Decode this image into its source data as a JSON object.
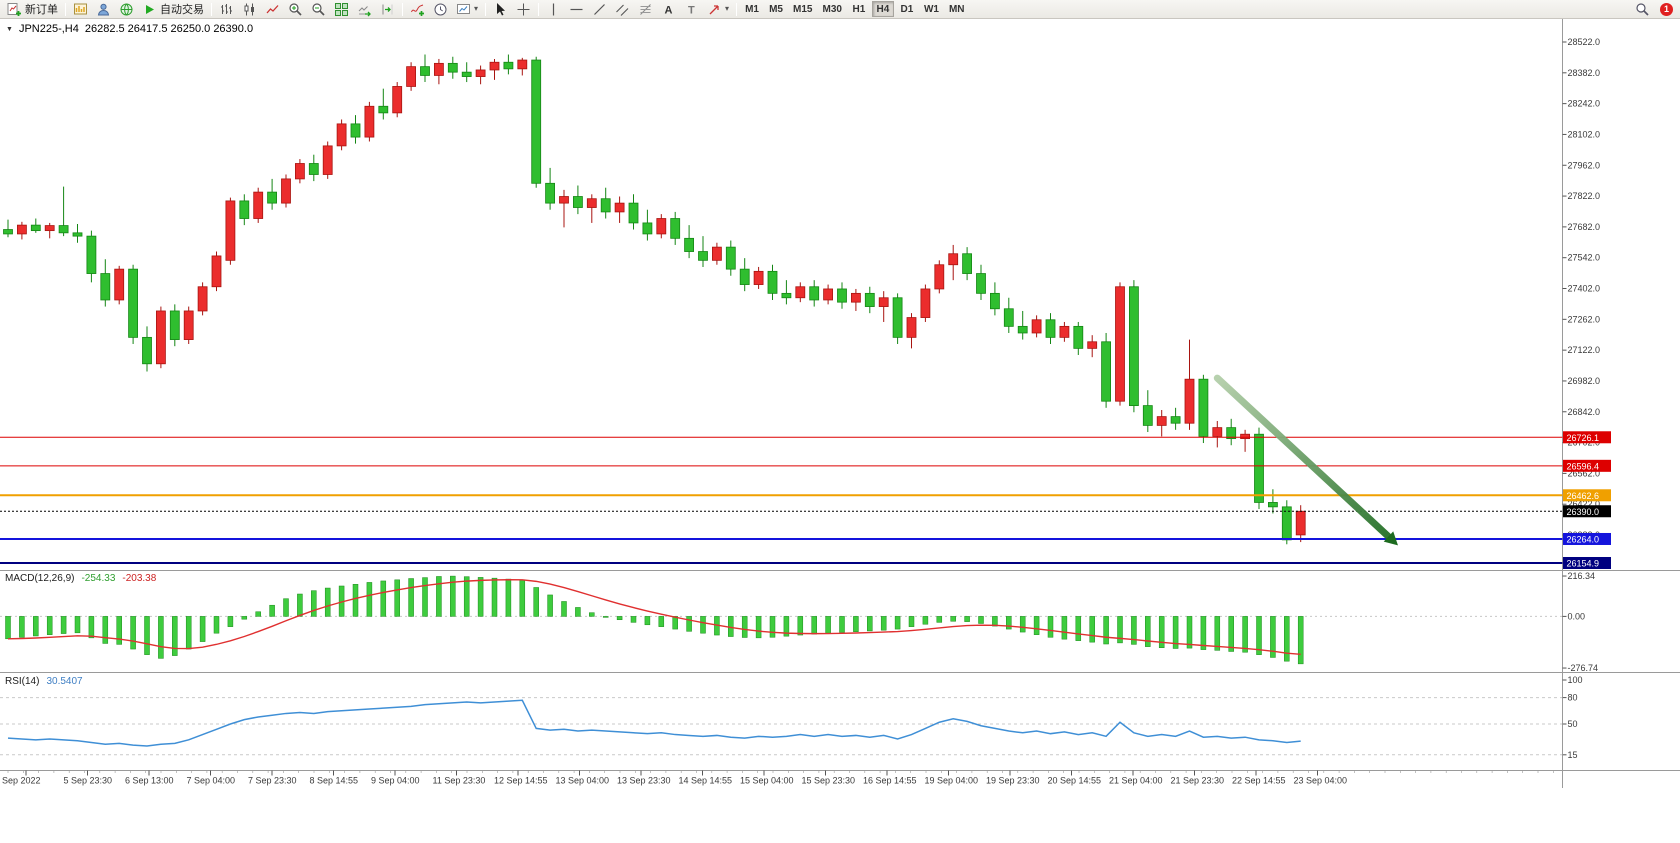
{
  "toolbar": {
    "new_order_label": "新订单",
    "autotrade_label": "自动交易",
    "timeframes": [
      "M1",
      "M5",
      "M15",
      "M30",
      "H1",
      "H4",
      "D1",
      "W1",
      "MN"
    ],
    "active_timeframe": "H4",
    "notification_count": "1"
  },
  "icons": {
    "collapse_triangle": "▼",
    "dropdown_caret": "▾",
    "text_tool": "A",
    "label_tool": "T"
  },
  "chart_header": {
    "symbol_period": "JPN225-,H4",
    "ohlc": "26282.5 26417.5 26250.0 26390.0"
  },
  "macd_panel": {
    "title": "MACD(12,26,9)",
    "value_main": "-254.33",
    "value_signal": "-203.38",
    "axis_labels": [
      "216.34",
      "0.00",
      "-276.74"
    ]
  },
  "rsi_panel": {
    "title": "RSI(14)",
    "value": "30.5407",
    "axis_labels": [
      "100",
      "80",
      "50",
      "15"
    ],
    "levels": [
      80,
      50,
      15
    ]
  },
  "price_axis": {
    "tick_labels": [
      "28522.0",
      "28382.0",
      "28242.0",
      "28102.0",
      "27962.0",
      "27822.0",
      "27682.0",
      "27542.0",
      "27402.0",
      "27262.0",
      "27122.0",
      "26982.0",
      "26842.0",
      "26702.0",
      "26562.0",
      "26422.0",
      "26282.0"
    ],
    "line_labels": [
      {
        "price": 26726.1,
        "label": "26726.1",
        "color": "#dd0000",
        "style": "solid",
        "width": 1
      },
      {
        "price": 26596.4,
        "label": "26596.4",
        "color": "#dd0000",
        "style": "solid",
        "width": 1
      },
      {
        "price": 26462.6,
        "label": "26462.6",
        "color": "#f0a000",
        "style": "solid",
        "width": 2
      },
      {
        "price": 26390.0,
        "label": "26390.0",
        "color": "#000000",
        "style": "dotted",
        "width": 1
      },
      {
        "price": 26264.0,
        "label": "26264.0",
        "color": "#1414dc",
        "style": "solid",
        "width": 2
      },
      {
        "price": 26154.9,
        "label": "26154.9",
        "color": "#000080",
        "style": "solid",
        "width": 2
      }
    ]
  },
  "time_axis": {
    "labels": [
      "Sep 2022",
      "5 Sep 23:30",
      "6 Sep 13:00",
      "7 Sep 04:00",
      "7 Sep 23:30",
      "8 Sep 14:55",
      "9 Sep 04:00",
      "11 Sep 23:30",
      "12 Sep 14:55",
      "13 Sep 04:00",
      "13 Sep 23:30",
      "14 Sep 14:55",
      "15 Sep 04:00",
      "15 Sep 23:30",
      "16 Sep 14:55",
      "19 Sep 04:00",
      "19 Sep 23:30",
      "20 Sep 14:55",
      "21 Sep 04:00",
      "21 Sep 23:30",
      "22 Sep 14:55",
      "23 Sep 04:00"
    ]
  },
  "annotation_arrow": {
    "from_index": 87,
    "from_price": 26995,
    "to_index": 100,
    "to_price": 26235
  },
  "colors": {
    "up": "#eb2d2d",
    "up_dark": "#a81410",
    "down": "#2fbe2f",
    "down_dark": "#148614",
    "macd_hist": "#3ecc3e",
    "macd_hist_dark": "#1a8a1a",
    "macd_signal": "#e03030",
    "rsi_line": "#3f8fd6",
    "axis_text": "#3a3a3a",
    "badge": "#e02020"
  },
  "chart_data": [
    {
      "type": "candlestick",
      "title": "JPN225-,H4",
      "note": "red = up candle, green = down candle (Chinese color convention)",
      "ylim": [
        26154.9,
        28522.0
      ],
      "ohlc": [
        [
          27670,
          27715,
          27635,
          27650
        ],
        [
          27650,
          27705,
          27625,
          27690
        ],
        [
          27690,
          27720,
          27655,
          27665
        ],
        [
          27665,
          27700,
          27630,
          27688
        ],
        [
          27688,
          27865,
          27640,
          27655
        ],
        [
          27655,
          27695,
          27610,
          27640
        ],
        [
          27640,
          27665,
          27430,
          27470
        ],
        [
          27470,
          27535,
          27320,
          27350
        ],
        [
          27350,
          27505,
          27330,
          27490
        ],
        [
          27490,
          27510,
          27150,
          27180
        ],
        [
          27180,
          27230,
          27025,
          27060
        ],
        [
          27060,
          27320,
          27040,
          27300
        ],
        [
          27300,
          27330,
          27140,
          27170
        ],
        [
          27170,
          27320,
          27150,
          27300
        ],
        [
          27300,
          27430,
          27280,
          27410
        ],
        [
          27410,
          27570,
          27390,
          27550
        ],
        [
          27530,
          27815,
          27510,
          27800
        ],
        [
          27800,
          27830,
          27690,
          27720
        ],
        [
          27720,
          27860,
          27700,
          27840
        ],
        [
          27840,
          27900,
          27760,
          27790
        ],
        [
          27790,
          27920,
          27770,
          27900
        ],
        [
          27900,
          27990,
          27880,
          27970
        ],
        [
          27970,
          28010,
          27890,
          27920
        ],
        [
          27920,
          28070,
          27900,
          28050
        ],
        [
          28050,
          28170,
          28030,
          28150
        ],
        [
          28150,
          28190,
          28060,
          28090
        ],
        [
          28090,
          28250,
          28070,
          28230
        ],
        [
          28230,
          28310,
          28170,
          28200
        ],
        [
          28200,
          28340,
          28180,
          28320
        ],
        [
          28320,
          28430,
          28300,
          28410
        ],
        [
          28410,
          28465,
          28340,
          28370
        ],
        [
          28370,
          28445,
          28330,
          28425
        ],
        [
          28425,
          28455,
          28355,
          28385
        ],
        [
          28385,
          28430,
          28340,
          28365
        ],
        [
          28365,
          28415,
          28330,
          28395
        ],
        [
          28395,
          28445,
          28350,
          28430
        ],
        [
          28430,
          28465,
          28375,
          28400
        ],
        [
          28400,
          28450,
          28370,
          28440
        ],
        [
          28440,
          28455,
          27860,
          27880
        ],
        [
          27880,
          27950,
          27760,
          27790
        ],
        [
          27790,
          27850,
          27680,
          27820
        ],
        [
          27820,
          27870,
          27740,
          27770
        ],
        [
          27770,
          27830,
          27700,
          27810
        ],
        [
          27810,
          27860,
          27720,
          27750
        ],
        [
          27750,
          27820,
          27700,
          27790
        ],
        [
          27790,
          27830,
          27670,
          27700
        ],
        [
          27700,
          27760,
          27620,
          27650
        ],
        [
          27650,
          27740,
          27630,
          27720
        ],
        [
          27720,
          27750,
          27600,
          27630
        ],
        [
          27630,
          27690,
          27540,
          27570
        ],
        [
          27570,
          27640,
          27500,
          27530
        ],
        [
          27530,
          27610,
          27510,
          27590
        ],
        [
          27590,
          27620,
          27460,
          27490
        ],
        [
          27490,
          27540,
          27390,
          27420
        ],
        [
          27420,
          27500,
          27400,
          27480
        ],
        [
          27480,
          27510,
          27350,
          27380
        ],
        [
          27380,
          27440,
          27330,
          27360
        ],
        [
          27360,
          27430,
          27340,
          27410
        ],
        [
          27410,
          27440,
          27320,
          27350
        ],
        [
          27350,
          27420,
          27330,
          27400
        ],
        [
          27400,
          27430,
          27310,
          27340
        ],
        [
          27340,
          27400,
          27300,
          27380
        ],
        [
          27380,
          27410,
          27290,
          27320
        ],
        [
          27320,
          27390,
          27250,
          27360
        ],
        [
          27360,
          27380,
          27150,
          27180
        ],
        [
          27180,
          27290,
          27130,
          27270
        ],
        [
          27270,
          27420,
          27250,
          27400
        ],
        [
          27400,
          27530,
          27380,
          27510
        ],
        [
          27510,
          27600,
          27440,
          27560
        ],
        [
          27560,
          27590,
          27440,
          27470
        ],
        [
          27470,
          27510,
          27350,
          27380
        ],
        [
          27380,
          27430,
          27280,
          27310
        ],
        [
          27310,
          27360,
          27200,
          27230
        ],
        [
          27230,
          27300,
          27170,
          27200
        ],
        [
          27200,
          27280,
          27180,
          27260
        ],
        [
          27260,
          27290,
          27150,
          27180
        ],
        [
          27180,
          27250,
          27160,
          27230
        ],
        [
          27230,
          27250,
          27100,
          27130
        ],
        [
          27130,
          27190,
          27090,
          27160
        ],
        [
          27160,
          27200,
          26860,
          26890
        ],
        [
          26890,
          27430,
          26870,
          27410
        ],
        [
          27410,
          27440,
          26840,
          26870
        ],
        [
          26870,
          26940,
          26750,
          26780
        ],
        [
          26780,
          26850,
          26730,
          26820
        ],
        [
          26820,
          26860,
          26760,
          26790
        ],
        [
          26790,
          27170,
          26760,
          26990
        ],
        [
          26990,
          27010,
          26700,
          26730
        ],
        [
          26730,
          26800,
          26680,
          26770
        ],
        [
          26770,
          26810,
          26690,
          26720
        ],
        [
          26720,
          26760,
          26660,
          26740
        ],
        [
          26740,
          26770,
          26400,
          26430
        ],
        [
          26430,
          26490,
          26380,
          26410
        ],
        [
          26410,
          26440,
          26240,
          26260
        ],
        [
          26282.5,
          26417.5,
          26250.0,
          26390.0
        ]
      ]
    },
    {
      "type": "bar",
      "title": "MACD(12,26,9)",
      "ylim": [
        -276.74,
        216.34
      ],
      "series": [
        {
          "name": "histogram",
          "values": [
            -120,
            -112,
            -105,
            -98,
            -92,
            -88,
            -115,
            -145,
            -150,
            -175,
            -205,
            -225,
            -210,
            -175,
            -135,
            -90,
            -55,
            -15,
            25,
            60,
            95,
            120,
            138,
            152,
            163,
            172,
            182,
            190,
            196,
            203,
            208,
            214,
            216,
            213,
            209,
            205,
            200,
            194,
            155,
            115,
            80,
            48,
            20,
            -2,
            -18,
            -32,
            -45,
            -55,
            -68,
            -80,
            -90,
            -100,
            -108,
            -113,
            -115,
            -112,
            -106,
            -100,
            -95,
            -90,
            -86,
            -82,
            -78,
            -74,
            -68,
            -55,
            -42,
            -32,
            -26,
            -28,
            -38,
            -52,
            -68,
            -84,
            -98,
            -112,
            -122,
            -130,
            -138,
            -148,
            -142,
            -150,
            -162,
            -168,
            -172,
            -170,
            -178,
            -182,
            -188,
            -192,
            -205,
            -220,
            -240,
            -254.33
          ]
        },
        {
          "name": "signal",
          "values": [
            -120,
            -118.4,
            -115.7,
            -112.2,
            -108.2,
            -104.1,
            -106.3,
            -114,
            -121.2,
            -132,
            -146.6,
            -162.3,
            -171.8,
            -172.4,
            -164.9,
            -149.9,
            -131,
            -107.8,
            -81.2,
            -53,
            -23.4,
            5.3,
            31.8,
            55.8,
            77.2,
            96.2,
            113.3,
            128.7,
            142.1,
            154.3,
            165,
            174.8,
            183.1,
            189.1,
            193,
            195.4,
            196.4,
            195.9,
            187.7,
            173.2,
            154.5,
            133.2,
            110.6,
            88.1,
            66.8,
            47.1,
            28.7,
            11.9,
            -4.1,
            -19.3,
            -33.4,
            -46.7,
            -59,
            -69.8,
            -78.8,
            -85.5,
            -89.6,
            -91.7,
            -92.3,
            -91.9,
            -90.7,
            -88.9,
            -86.8,
            -84.2,
            -81,
            -75.8,
            -69,
            -61.6,
            -54.5,
            -49.2,
            -47,
            -48,
            -52,
            -58.4,
            -66.3,
            -75.4,
            -84.7,
            -93.8,
            -102.6,
            -111.7,
            -117.8,
            -124.2,
            -131.8,
            -139,
            -145.6,
            -150.5,
            -156,
            -161.2,
            -166.6,
            -171.7,
            -178.3,
            -186.7,
            -197.3,
            -203.38
          ]
        }
      ]
    },
    {
      "type": "line",
      "title": "RSI(14)",
      "ylim": [
        0,
        100
      ],
      "series": [
        {
          "name": "rsi",
          "values": [
            34,
            33,
            32,
            33,
            32,
            31,
            29,
            27,
            28,
            26,
            25,
            27,
            28,
            32,
            38,
            44,
            50,
            55,
            58,
            60,
            62,
            63,
            62,
            64,
            65,
            66,
            67,
            68,
            69,
            70,
            72,
            73,
            74,
            75,
            74,
            75,
            76,
            77,
            45,
            43,
            44,
            42,
            43,
            42,
            41,
            40,
            39,
            40,
            38,
            37,
            36,
            37,
            35,
            34,
            36,
            35,
            36,
            38,
            36,
            38,
            36,
            37,
            35,
            37,
            33,
            38,
            45,
            52,
            56,
            53,
            48,
            45,
            42,
            40,
            42,
            39,
            41,
            38,
            40,
            36,
            52,
            40,
            36,
            38,
            36,
            42,
            35,
            36,
            34,
            35,
            32,
            31,
            29,
            30.54
          ]
        }
      ]
    }
  ]
}
